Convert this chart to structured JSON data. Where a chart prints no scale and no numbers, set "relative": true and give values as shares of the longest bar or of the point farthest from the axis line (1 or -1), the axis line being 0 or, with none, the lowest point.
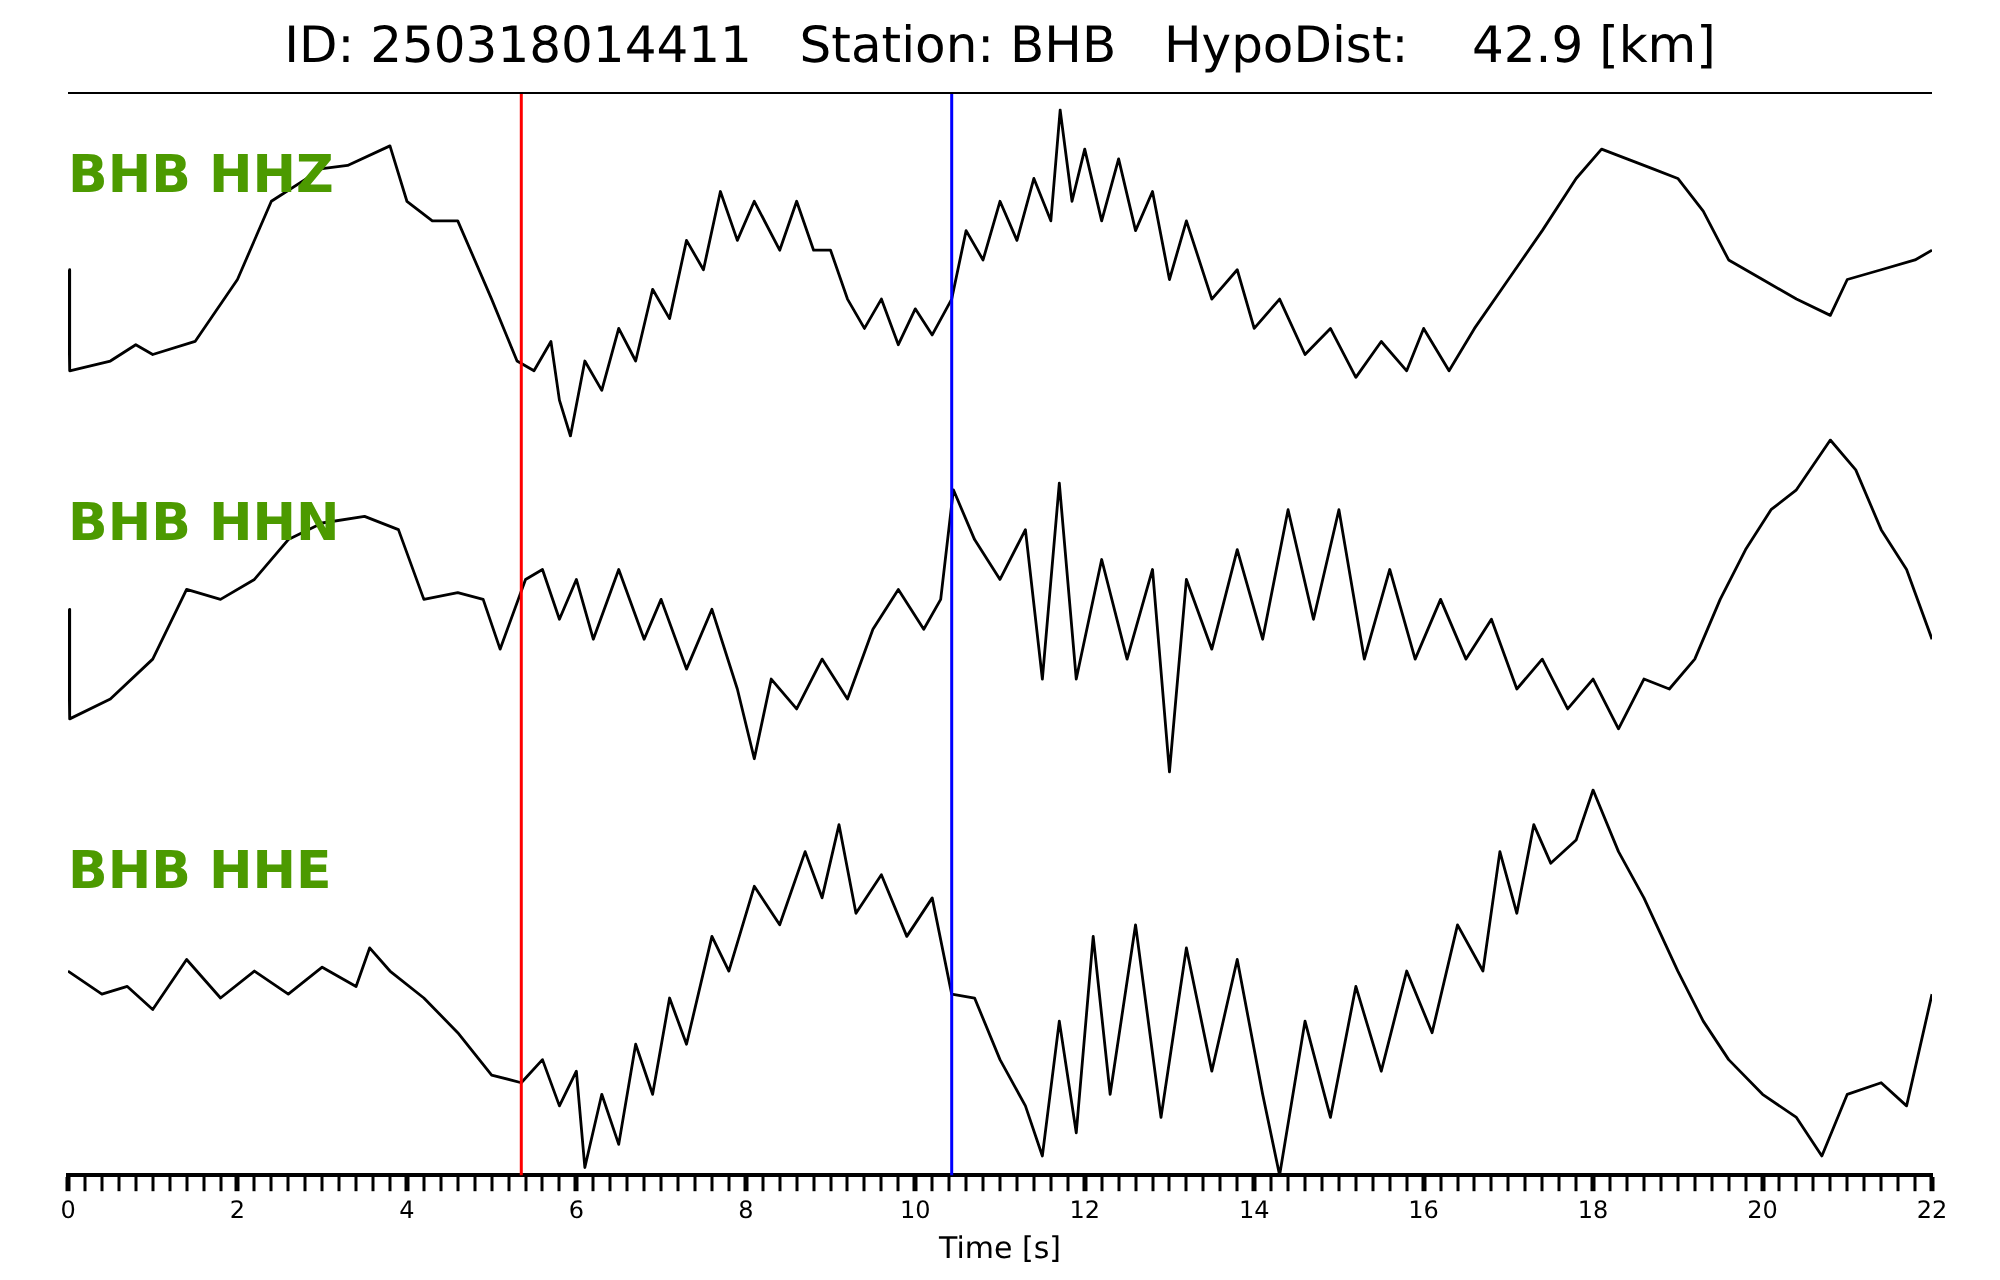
{
  "chart_data": [
    {
      "type": "line",
      "title": "ID: 250318014411   Station: BHB   HypoDist:    42.9 [km]",
      "relative": true,
      "xlim": [
        0,
        22
      ],
      "tick_labels": false,
      "ref_lines": [
        {
          "axis": "x",
          "value": 5.35,
          "color": "#ff0000"
        },
        {
          "axis": "x",
          "value": 10.43,
          "color": "#0000ff"
        }
      ],
      "series": [
        {
          "name": "BHB HHZ",
          "color": "#000000",
          "x": [
            0,
            0.02,
            0.5,
            0.8,
            1.0,
            1.5,
            2.0,
            2.4,
            3.0,
            3.3,
            3.8,
            4.0,
            4.3,
            4.6,
            5.0,
            5.3,
            5.5,
            5.7,
            5.8,
            5.93,
            6.1,
            6.3,
            6.5,
            6.7,
            6.9,
            7.1,
            7.3,
            7.5,
            7.7,
            7.9,
            8.1,
            8.4,
            8.6,
            8.8,
            9.0,
            9.2,
            9.4,
            9.6,
            9.8,
            10.0,
            10.2,
            10.43,
            10.6,
            10.8,
            11.0,
            11.2,
            11.4,
            11.6,
            11.71,
            11.85,
            12.0,
            12.2,
            12.4,
            12.6,
            12.8,
            13.0,
            13.2,
            13.5,
            13.8,
            14.0,
            14.3,
            14.6,
            14.9,
            15.2,
            15.5,
            15.8,
            16.0,
            16.3,
            16.6,
            17.0,
            17.4,
            17.8,
            18.1,
            18.4,
            18.7,
            19.0,
            19.3,
            19.6,
            20.0,
            20.4,
            20.8,
            21.0,
            21.4,
            21.8,
            22.0
          ],
          "values": [
            0.51,
            0.2,
            0.23,
            0.28,
            0.25,
            0.29,
            0.48,
            0.72,
            0.82,
            0.83,
            0.89,
            0.72,
            0.66,
            0.66,
            0.42,
            0.23,
            0.2,
            0.29,
            0.11,
            0,
            0.23,
            0.14,
            0.33,
            0.23,
            0.45,
            0.36,
            0.6,
            0.51,
            0.75,
            0.6,
            0.72,
            0.57,
            0.72,
            0.57,
            0.57,
            0.42,
            0.33,
            0.42,
            0.28,
            0.39,
            0.31,
            0.42,
            0.63,
            0.54,
            0.72,
            0.6,
            0.79,
            0.66,
            1.0,
            0.72,
            0.88,
            0.66,
            0.85,
            0.63,
            0.75,
            0.48,
            0.66,
            0.42,
            0.51,
            0.33,
            0.42,
            0.25,
            0.33,
            0.18,
            0.29,
            0.2,
            0.33,
            0.2,
            0.33,
            0.48,
            0.63,
            0.79,
            0.88,
            0.85,
            0.82,
            0.79,
            0.69,
            0.54,
            0.48,
            0.42,
            0.37,
            0.48,
            0.51,
            0.54,
            0.57
          ]
        }
      ]
    },
    {
      "type": "line",
      "relative": true,
      "xlim": [
        0,
        22
      ],
      "tick_labels": false,
      "ref_lines": [
        {
          "axis": "x",
          "value": 5.35,
          "color": "#ff0000"
        },
        {
          "axis": "x",
          "value": 10.43,
          "color": "#0000ff"
        }
      ],
      "series": [
        {
          "name": "BHB HHN",
          "color": "#000000",
          "x": [
            0,
            0.02,
            0.5,
            1.0,
            1.4,
            1.8,
            2.2,
            2.6,
            3.0,
            3.5,
            3.9,
            4.2,
            4.6,
            4.9,
            5.1,
            5.4,
            5.6,
            5.8,
            6.0,
            6.2,
            6.5,
            6.8,
            7.0,
            7.3,
            7.6,
            7.9,
            8.1,
            8.3,
            8.6,
            8.9,
            9.2,
            9.5,
            9.8,
            10.1,
            10.3,
            10.45,
            10.7,
            11.0,
            11.3,
            11.5,
            11.7,
            11.9,
            12.2,
            12.5,
            12.8,
            13.0,
            13.2,
            13.5,
            13.8,
            14.1,
            14.4,
            14.7,
            15.0,
            15.3,
            15.6,
            15.9,
            16.2,
            16.5,
            16.8,
            17.1,
            17.4,
            17.7,
            18.0,
            18.3,
            18.6,
            18.9,
            19.2,
            19.5,
            19.8,
            20.1,
            20.4,
            20.8,
            21.1,
            21.4,
            21.7,
            22.0
          ],
          "values": [
            0.49,
            0.16,
            0.22,
            0.34,
            0.55,
            0.52,
            0.58,
            0.7,
            0.75,
            0.77,
            0.73,
            0.52,
            0.54,
            0.52,
            0.37,
            0.58,
            0.61,
            0.46,
            0.58,
            0.4,
            0.61,
            0.4,
            0.52,
            0.31,
            0.49,
            0.25,
            0.04,
            0.28,
            0.19,
            0.34,
            0.22,
            0.43,
            0.55,
            0.43,
            0.52,
            0.85,
            0.7,
            0.58,
            0.73,
            0.28,
            0.87,
            0.28,
            0.64,
            0.34,
            0.61,
            0,
            0.58,
            0.37,
            0.67,
            0.4,
            0.79,
            0.46,
            0.79,
            0.34,
            0.61,
            0.34,
            0.52,
            0.34,
            0.46,
            0.25,
            0.34,
            0.19,
            0.28,
            0.13,
            0.28,
            0.25,
            0.34,
            0.52,
            0.67,
            0.79,
            0.85,
            1.0,
            0.91,
            0.73,
            0.61,
            0.4
          ]
        }
      ]
    },
    {
      "type": "line",
      "relative": true,
      "xlim": [
        0,
        22
      ],
      "tick_labels": "x",
      "xlabel": "Time [s]",
      "xticks": [
        0,
        {
          "value": 0.2,
          "label": null
        },
        {
          "value": 0.4,
          "label": null
        },
        {
          "value": 0.6,
          "label": null
        },
        {
          "value": 0.8,
          "label": null
        },
        {
          "value": 1,
          "label": null
        },
        {
          "value": 1.2,
          "label": null
        },
        {
          "value": 1.4,
          "label": null
        },
        {
          "value": 1.6,
          "label": null
        },
        {
          "value": 1.8,
          "label": null
        },
        2,
        {
          "value": 2.2,
          "label": null
        },
        {
          "value": 2.4,
          "label": null
        },
        {
          "value": 2.6,
          "label": null
        },
        {
          "value": 2.8,
          "label": null
        },
        {
          "value": 3,
          "label": null
        },
        {
          "value": 3.2,
          "label": null
        },
        {
          "value": 3.4,
          "label": null
        },
        {
          "value": 3.6,
          "label": null
        },
        {
          "value": 3.8,
          "label": null
        },
        4,
        {
          "value": 4.2,
          "label": null
        },
        {
          "value": 4.4,
          "label": null
        },
        {
          "value": 4.6,
          "label": null
        },
        {
          "value": 4.8,
          "label": null
        },
        {
          "value": 5,
          "label": null
        },
        {
          "value": 5.2,
          "label": null
        },
        {
          "value": 5.4,
          "label": null
        },
        {
          "value": 5.6,
          "label": null
        },
        {
          "value": 5.8,
          "label": null
        },
        6,
        {
          "value": 6.2,
          "label": null
        },
        {
          "value": 6.4,
          "label": null
        },
        {
          "value": 6.6,
          "label": null
        },
        {
          "value": 6.8,
          "label": null
        },
        {
          "value": 7,
          "label": null
        },
        {
          "value": 7.2,
          "label": null
        },
        {
          "value": 7.4,
          "label": null
        },
        {
          "value": 7.6,
          "label": null
        },
        {
          "value": 7.8,
          "label": null
        },
        8,
        {
          "value": 8.2,
          "label": null
        },
        {
          "value": 8.4,
          "label": null
        },
        {
          "value": 8.6,
          "label": null
        },
        {
          "value": 8.8,
          "label": null
        },
        {
          "value": 9,
          "label": null
        },
        {
          "value": 9.2,
          "label": null
        },
        {
          "value": 9.4,
          "label": null
        },
        {
          "value": 9.6,
          "label": null
        },
        {
          "value": 9.8,
          "label": null
        },
        10,
        {
          "value": 10.2,
          "label": null
        },
        {
          "value": 10.4,
          "label": null
        },
        {
          "value": 10.6,
          "label": null
        },
        {
          "value": 10.8,
          "label": null
        },
        {
          "value": 11,
          "label": null
        },
        {
          "value": 11.2,
          "label": null
        },
        {
          "value": 11.4,
          "label": null
        },
        {
          "value": 11.6,
          "label": null
        },
        {
          "value": 11.8,
          "label": null
        },
        12,
        {
          "value": 12.2,
          "label": null
        },
        {
          "value": 12.4,
          "label": null
        },
        {
          "value": 12.6,
          "label": null
        },
        {
          "value": 12.8,
          "label": null
        },
        {
          "value": 13,
          "label": null
        },
        {
          "value": 13.2,
          "label": null
        },
        {
          "value": 13.4,
          "label": null
        },
        {
          "value": 13.6,
          "label": null
        },
        {
          "value": 13.8,
          "label": null
        },
        14,
        {
          "value": 14.2,
          "label": null
        },
        {
          "value": 14.4,
          "label": null
        },
        {
          "value": 14.6,
          "label": null
        },
        {
          "value": 14.8,
          "label": null
        },
        {
          "value": 15,
          "label": null
        },
        {
          "value": 15.2,
          "label": null
        },
        {
          "value": 15.4,
          "label": null
        },
        {
          "value": 15.6,
          "label": null
        },
        {
          "value": 15.8,
          "label": null
        },
        16,
        {
          "value": 16.2,
          "label": null
        },
        {
          "value": 16.4,
          "label": null
        },
        {
          "value": 16.6,
          "label": null
        },
        {
          "value": 16.8,
          "label": null
        },
        {
          "value": 17,
          "label": null
        },
        {
          "value": 17.2,
          "label": null
        },
        {
          "value": 17.4,
          "label": null
        },
        {
          "value": 17.6,
          "label": null
        },
        {
          "value": 17.8,
          "label": null
        },
        18,
        {
          "value": 18.2,
          "label": null
        },
        {
          "value": 18.4,
          "label": null
        },
        {
          "value": 18.6,
          "label": null
        },
        {
          "value": 18.8,
          "label": null
        },
        {
          "value": 19,
          "label": null
        },
        {
          "value": 19.2,
          "label": null
        },
        {
          "value": 19.4,
          "label": null
        },
        {
          "value": 19.6,
          "label": null
        },
        {
          "value": 19.8,
          "label": null
        },
        20,
        {
          "value": 20.2,
          "label": null
        },
        {
          "value": 20.4,
          "label": null
        },
        {
          "value": 20.6,
          "label": null
        },
        {
          "value": 20.8,
          "label": null
        },
        {
          "value": 21,
          "label": null
        },
        {
          "value": 21.2,
          "label": null
        },
        {
          "value": 21.4,
          "label": null
        },
        {
          "value": 21.6,
          "label": null
        },
        {
          "value": 21.8,
          "label": null
        },
        22
      ],
      "ref_lines": [
        {
          "axis": "x",
          "value": 5.35,
          "color": "#ff0000"
        },
        {
          "axis": "x",
          "value": 10.43,
          "color": "#0000ff"
        }
      ],
      "series": [
        {
          "name": "BHB HHE",
          "color": "#000000",
          "x": [
            0,
            0.4,
            0.7,
            1.0,
            1.4,
            1.8,
            2.2,
            2.6,
            3.0,
            3.4,
            3.56,
            3.8,
            4.2,
            4.6,
            5.0,
            5.35,
            5.6,
            5.8,
            6.0,
            6.1,
            6.3,
            6.5,
            6.7,
            6.9,
            7.1,
            7.3,
            7.6,
            7.8,
            8.1,
            8.4,
            8.7,
            8.9,
            9.1,
            9.3,
            9.6,
            9.9,
            10.2,
            10.43,
            10.7,
            11.0,
            11.3,
            11.5,
            11.7,
            11.9,
            12.1,
            12.3,
            12.6,
            12.9,
            13.2,
            13.5,
            13.8,
            14.1,
            14.3,
            14.6,
            14.9,
            15.2,
            15.5,
            15.8,
            16.1,
            16.4,
            16.7,
            16.9,
            17.1,
            17.3,
            17.5,
            17.8,
            18.0,
            18.3,
            18.6,
            19.0,
            19.3,
            19.6,
            20.0,
            20.4,
            20.7,
            21.0,
            21.4,
            21.7,
            22.0
          ],
          "values": [
            0.53,
            0.47,
            0.49,
            0.43,
            0.56,
            0.46,
            0.53,
            0.47,
            0.54,
            0.49,
            0.59,
            0.53,
            0.46,
            0.37,
            0.26,
            0.24,
            0.3,
            0.18,
            0.27,
            0.02,
            0.21,
            0.08,
            0.34,
            0.21,
            0.46,
            0.34,
            0.62,
            0.53,
            0.75,
            0.65,
            0.84,
            0.72,
            0.91,
            0.68,
            0.78,
            0.62,
            0.72,
            0.47,
            0.46,
            0.3,
            0.18,
            0.05,
            0.4,
            0.11,
            0.62,
            0.21,
            0.65,
            0.15,
            0.59,
            0.27,
            0.56,
            0.21,
            0,
            0.4,
            0.15,
            0.49,
            0.27,
            0.53,
            0.37,
            0.65,
            0.53,
            0.84,
            0.68,
            0.91,
            0.81,
            0.87,
            1.0,
            0.84,
            0.72,
            0.53,
            0.4,
            0.3,
            0.21,
            0.15,
            0.05,
            0.21,
            0.24,
            0.18,
            0.47
          ]
        }
      ]
    }
  ]
}
